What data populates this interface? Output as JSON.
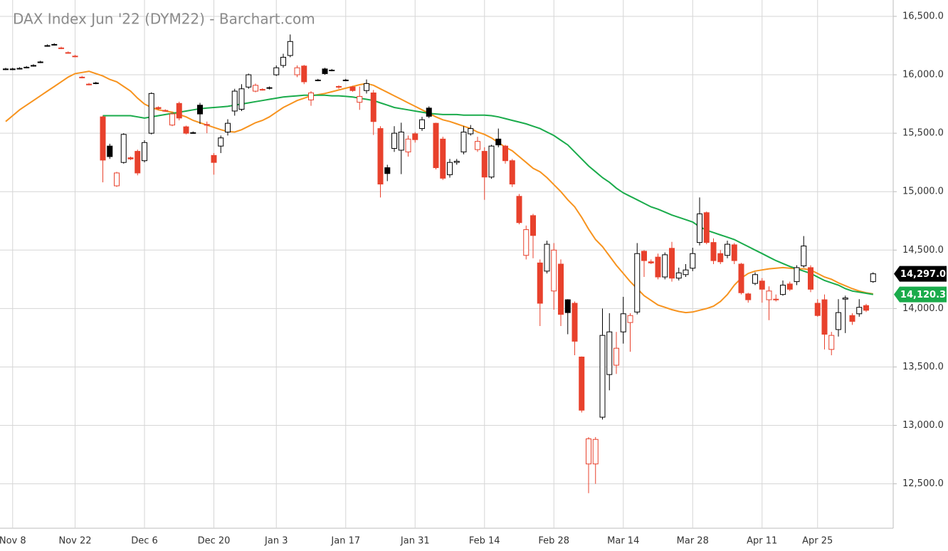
{
  "chart_data": {
    "type": "candlestick",
    "title": "DAX Index Jun '22 (DYM22) - Barchart.com",
    "categories": [
      null,
      "Nov 8",
      null,
      null,
      null,
      null,
      null,
      null,
      null,
      null,
      "Nov 22",
      null,
      null,
      null,
      null,
      null,
      null,
      null,
      null,
      null,
      "Dec 6",
      null,
      null,
      null,
      null,
      null,
      null,
      null,
      null,
      null,
      "Dec 20",
      null,
      null,
      null,
      null,
      null,
      null,
      null,
      null,
      "Jan 3",
      null,
      null,
      null,
      null,
      null,
      null,
      null,
      null,
      null,
      "Jan 17",
      null,
      null,
      null,
      null,
      null,
      null,
      null,
      null,
      null,
      "Jan 31",
      null,
      null,
      null,
      null,
      null,
      null,
      null,
      null,
      null,
      "Feb 14",
      null,
      null,
      null,
      null,
      null,
      null,
      null,
      null,
      null,
      "Feb 28",
      null,
      null,
      null,
      null,
      null,
      null,
      null,
      null,
      null,
      "Mar 14",
      null,
      null,
      null,
      null,
      null,
      null,
      null,
      null,
      null,
      "Mar 28",
      null,
      null,
      null,
      null,
      null,
      null,
      null,
      null,
      null,
      "Apr 11",
      null,
      null,
      null,
      null,
      null,
      null,
      null,
      "Apr 25",
      null,
      null,
      null,
      null,
      null,
      null,
      null,
      null
    ],
    "open": [
      16050,
      16050,
      16055,
      16065,
      16080,
      16110,
      16250,
      16260,
      16230,
      16190,
      16160,
      15980,
      15920,
      15930,
      15640,
      15390,
      15050,
      15250,
      15290,
      15345,
      15265,
      15500,
      15720,
      15695,
      15570,
      15755,
      15555,
      15505,
      15740,
      15575,
      15310,
      15390,
      15510,
      15690,
      15705,
      15895,
      15860,
      15875,
      15885,
      16000,
      16080,
      16165,
      16000,
      16075,
      15785,
      15955,
      16050,
      16040,
      15900,
      15955,
      15895,
      15765,
      15865,
      15845,
      15540,
      15205,
      15370,
      15355,
      15340,
      15495,
      15540,
      15715,
      15585,
      15450,
      15145,
      15250,
      15340,
      15495,
      15360,
      15345,
      15125,
      15450,
      15390,
      15265,
      14960,
      14455,
      14795,
      14390,
      14320,
      14150,
      14380,
      14075,
      14045,
      13585,
      12670,
      12670,
      13070,
      13435,
      13515,
      13800,
      13880,
      13970,
      14490,
      14400,
      14440,
      14270,
      14515,
      14260,
      14290,
      14345,
      14565,
      14820,
      14565,
      14470,
      14455,
      14545,
      14380,
      14125,
      14215,
      14235,
      14075,
      14080,
      14120,
      14210,
      14230,
      14365,
      14350,
      14045,
      14075,
      13650,
      13820,
      14080,
      13940,
      13955,
      14025,
      14230
    ],
    "high": [
      16060,
      16060,
      16065,
      16075,
      16090,
      16120,
      16260,
      16270,
      16240,
      16200,
      16170,
      15990,
      15930,
      15940,
      15650,
      15410,
      15170,
      15500,
      15300,
      15360,
      15440,
      15850,
      15730,
      15705,
      15680,
      15770,
      15565,
      15515,
      15760,
      15600,
      15330,
      15480,
      15620,
      15880,
      15920,
      16010,
      15925,
      15885,
      15900,
      16080,
      16180,
      16345,
      16080,
      16085,
      15860,
      15965,
      16060,
      16050,
      15910,
      15965,
      15905,
      15900,
      15960,
      15870,
      15560,
      15230,
      15560,
      15590,
      15480,
      15510,
      15640,
      15730,
      15590,
      15470,
      15280,
      15280,
      15560,
      15570,
      15470,
      15380,
      15400,
      15540,
      15400,
      15280,
      14980,
      14710,
      14810,
      14420,
      14580,
      14560,
      14420,
      14080,
      14060,
      13590,
      12900,
      12900,
      14000,
      13960,
      13800,
      14100,
      13960,
      14560,
      14500,
      14420,
      14470,
      14480,
      14570,
      14350,
      14380,
      14520,
      14950,
      14830,
      14600,
      14500,
      14580,
      14560,
      14390,
      14135,
      14310,
      14260,
      14190,
      14120,
      14240,
      14230,
      14370,
      14620,
      14370,
      14080,
      14120,
      13800,
      14080,
      14110,
      13960,
      14080,
      14040,
      14310
    ],
    "low": [
      16040,
      16040,
      16045,
      16055,
      16070,
      16100,
      16240,
      16250,
      16220,
      16180,
      16150,
      15970,
      15910,
      15920,
      15080,
      15280,
      15040,
      15240,
      15270,
      15140,
      15250,
      15490,
      15700,
      15685,
      15560,
      15610,
      15490,
      15495,
      15580,
      15500,
      15145,
      15330,
      15480,
      15650,
      15690,
      15880,
      15850,
      15865,
      15875,
      15990,
      16060,
      16150,
      15980,
      15920,
      15735,
      15945,
      16000,
      16030,
      15880,
      15945,
      15855,
      15700,
      15840,
      15485,
      14950,
      15090,
      15340,
      15150,
      15300,
      15420,
      15520,
      15630,
      15190,
      15100,
      15120,
      15230,
      15320,
      15480,
      15340,
      14930,
      15110,
      15380,
      15240,
      15040,
      14720,
      14420,
      14430,
      13850,
      14300,
      13990,
      13850,
      13780,
      13600,
      13110,
      12420,
      12500,
      13050,
      13300,
      13440,
      13700,
      13630,
      13950,
      14270,
      14380,
      14250,
      14250,
      14230,
      14240,
      14270,
      14320,
      14540,
      14550,
      14380,
      14380,
      14430,
      14380,
      14120,
      14050,
      14200,
      14050,
      13900,
      14060,
      14110,
      14150,
      14200,
      14350,
      14140,
      13930,
      13650,
      13600,
      13760,
      13790,
      13860,
      13930,
      13970,
      14220
    ],
    "close": [
      16050,
      16050,
      16055,
      16065,
      16080,
      16110,
      16250,
      16260,
      16230,
      16190,
      16160,
      15980,
      15920,
      15930,
      15270,
      15300,
      15160,
      15490,
      15280,
      15160,
      15420,
      15840,
      15710,
      15695,
      15665,
      15630,
      15500,
      15505,
      15665,
      15570,
      15250,
      15460,
      15585,
      15860,
      15880,
      16000,
      15910,
      15875,
      15890,
      16060,
      16150,
      16285,
      16060,
      15940,
      15845,
      15955,
      16010,
      16040,
      15895,
      15955,
      15865,
      15815,
      15925,
      15600,
      15065,
      15155,
      15500,
      15510,
      15450,
      15445,
      15615,
      15645,
      15205,
      15115,
      15250,
      15260,
      15510,
      15540,
      15430,
      15125,
      15390,
      15400,
      15265,
      15065,
      14735,
      14675,
      14625,
      14045,
      14550,
      14500,
      13950,
      13965,
      13720,
      13130,
      12885,
      12880,
      13770,
      13800,
      13660,
      13955,
      13940,
      14470,
      14410,
      14390,
      14270,
      14460,
      14260,
      14305,
      14330,
      14470,
      14810,
      14565,
      14410,
      14400,
      14550,
      14410,
      14135,
      14075,
      14290,
      14165,
      14150,
      14075,
      14200,
      14165,
      14350,
      14535,
      14165,
      13940,
      13780,
      13770,
      13965,
      14090,
      13890,
      14010,
      13985,
      14297
    ],
    "up_color": "#000000",
    "down_color": "#e8412c",
    "lines": [
      {
        "color": "#f7931e",
        "values": [
          15600,
          15650,
          15700,
          15740,
          15780,
          15820,
          15860,
          15900,
          15940,
          15980,
          16010,
          16020,
          16030,
          16010,
          15990,
          15960,
          15940,
          15900,
          15860,
          15800,
          15750,
          15720,
          15700,
          15690,
          15680,
          15660,
          15640,
          15610,
          15590,
          15570,
          15550,
          15530,
          15515,
          15510,
          15530,
          15560,
          15590,
          15610,
          15640,
          15680,
          15720,
          15750,
          15780,
          15800,
          15820,
          15830,
          15840,
          15855,
          15870,
          15885,
          15900,
          15915,
          15925,
          15910,
          15880,
          15850,
          15820,
          15790,
          15760,
          15730,
          15700,
          15670,
          15640,
          15615,
          15600,
          15580,
          15560,
          15540,
          15510,
          15490,
          15460,
          15420,
          15380,
          15350,
          15300,
          15250,
          15200,
          15170,
          15120,
          15060,
          15000,
          14930,
          14870,
          14780,
          14680,
          14590,
          14530,
          14450,
          14370,
          14300,
          14230,
          14170,
          14110,
          14070,
          14030,
          14010,
          13990,
          13975,
          13965,
          13970,
          13985,
          14000,
          14020,
          14060,
          14120,
          14200,
          14260,
          14300,
          14320,
          14330,
          14340,
          14345,
          14350,
          14345,
          14340,
          14340,
          14330,
          14300,
          14270,
          14250,
          14220,
          14195,
          14170,
          14150,
          14135,
          14125
        ]
      },
      {
        "color": "#1aab4b",
        "values": [
          null,
          null,
          null,
          null,
          null,
          null,
          null,
          null,
          null,
          null,
          null,
          null,
          null,
          null,
          15650,
          15650,
          15650,
          15650,
          15650,
          15640,
          15630,
          15640,
          15650,
          15660,
          15670,
          15680,
          15690,
          15700,
          15710,
          15715,
          15720,
          15725,
          15730,
          15740,
          15750,
          15760,
          15770,
          15780,
          15790,
          15800,
          15810,
          15815,
          15820,
          15825,
          15825,
          15825,
          15825,
          15820,
          15820,
          15815,
          15810,
          15800,
          15790,
          15780,
          15760,
          15740,
          15720,
          15710,
          15700,
          15690,
          15680,
          15670,
          15665,
          15660,
          15660,
          15660,
          15655,
          15655,
          15655,
          15655,
          15650,
          15640,
          15625,
          15610,
          15595,
          15580,
          15560,
          15540,
          15510,
          15480,
          15440,
          15400,
          15340,
          15280,
          15220,
          15170,
          15120,
          15080,
          15030,
          14990,
          14960,
          14930,
          14900,
          14870,
          14850,
          14825,
          14800,
          14780,
          14760,
          14740,
          14700,
          14670,
          14650,
          14630,
          14610,
          14590,
          14560,
          14530,
          14500,
          14470,
          14440,
          14410,
          14385,
          14360,
          14340,
          14320,
          14300,
          14270,
          14240,
          14220,
          14200,
          14170,
          14150,
          14140,
          14130,
          14120.3
        ]
      }
    ],
    "price_markers": [
      {
        "value": 14297,
        "label": "14,297.0",
        "color": "#000000"
      },
      {
        "value": 14120.3,
        "label": "14,120.3",
        "color": "#1aab4b"
      }
    ],
    "ylim": [
      12120,
      16640
    ],
    "yticks": [
      {
        "value": 12500,
        "label": "12,500.0"
      },
      {
        "value": 13000,
        "label": "13,000.0"
      },
      {
        "value": 13500,
        "label": "13,500.0"
      },
      {
        "value": 14000,
        "label": "14,000.0"
      },
      {
        "value": 14500,
        "label": "14,500.0"
      },
      {
        "value": 15000,
        "label": "15,000.0"
      },
      {
        "value": 15500,
        "label": "15,500.0"
      },
      {
        "value": 16000,
        "label": "16,000.0"
      },
      {
        "value": 16500,
        "label": "16,500.0"
      }
    ],
    "grid": true
  }
}
